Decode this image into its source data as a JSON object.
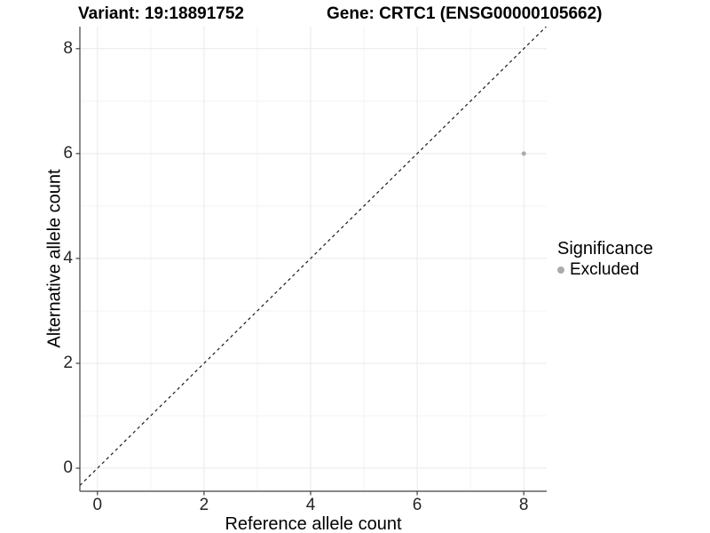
{
  "titles": {
    "variant": "Variant: 19:18891752",
    "gene": "Gene: CRTC1 (ENSG00000105662)"
  },
  "legend": {
    "title": "Significance",
    "items": [
      {
        "label": "Excluded",
        "color": "#ababab"
      }
    ]
  },
  "chart_data": {
    "type": "scatter",
    "title": "Variant: 19:18891752 — Gene: CRTC1 (ENSG00000105662)",
    "xlabel": "Reference allele count",
    "ylabel": "Alternative allele count",
    "xlim": [
      -0.33,
      8.43
    ],
    "ylim": [
      -0.44,
      8.42
    ],
    "x_ticks": [
      0,
      2,
      4,
      6,
      8
    ],
    "y_ticks": [
      0,
      2,
      4,
      6,
      8
    ],
    "x_minor_ticks": [
      1,
      3,
      5,
      7
    ],
    "y_minor_ticks": [
      1,
      3,
      5,
      7
    ],
    "grid": true,
    "legend_position": "right",
    "series": [
      {
        "name": "Excluded",
        "color": "#ababab",
        "points": [
          {
            "x": 8,
            "y": 6
          }
        ]
      }
    ],
    "reference_line": {
      "type": "identity",
      "equation": "y = x",
      "style": "dashed",
      "color": "#1a1a1a"
    },
    "colors": {
      "grid_major": "#e9e9e9",
      "grid_minor": "#f3f3f3",
      "axis": "#404040",
      "tick_text": "#262626",
      "point": "#ababab",
      "background": "#ffffff"
    }
  }
}
